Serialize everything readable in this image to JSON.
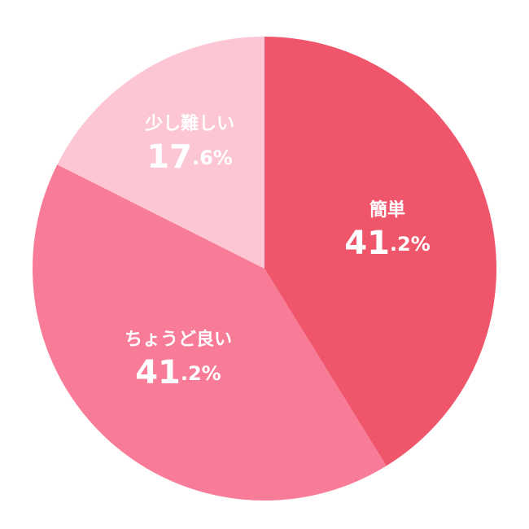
{
  "chart_data": {
    "type": "pie",
    "categories": [
      "簡単",
      "ちょうど良い",
      "少し難しい"
    ],
    "values": [
      41.2,
      41.2,
      17.6
    ],
    "value_labels": [
      "41.2%",
      "41.2%",
      "17.6%"
    ],
    "colors": [
      "#f0566b",
      "#f87b97",
      "#fdc6d4"
    ]
  }
}
